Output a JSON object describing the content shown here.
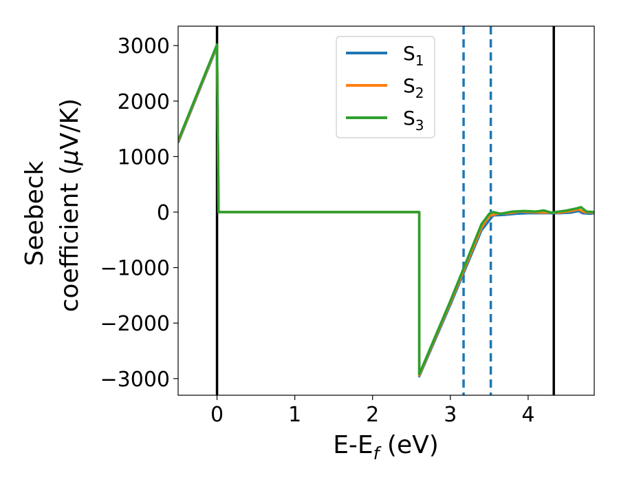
{
  "chart_data": {
    "type": "line",
    "xlabel_main": "E-E",
    "xlabel_sub": "f",
    "xlabel_unit": " (eV)",
    "ylabel_line1": "Seebeck",
    "ylabel_line2_pre": "coefficient  (",
    "ylabel_mu": "μ",
    "ylabel_line2_post": "V/K)",
    "xlim": [
      -0.5,
      4.85
    ],
    "ylim": [
      -3300,
      3350
    ],
    "x_ticks": [
      0,
      1,
      2,
      3,
      4
    ],
    "x_tick_labels": [
      "0",
      "1",
      "2",
      "3",
      "4"
    ],
    "y_ticks": [
      3000,
      2000,
      1000,
      0,
      -1000,
      -2000,
      -3000
    ],
    "y_tick_labels": [
      "3000",
      "2000",
      "1000",
      "0",
      "−1000",
      "−2000",
      "−3000"
    ],
    "legend_position": "top-center",
    "series": [
      {
        "name_main": "S",
        "name_sub": "1",
        "color": "#1f77b4",
        "points": [
          [
            -0.5,
            1250
          ],
          [
            0,
            2980
          ],
          [
            0.02,
            0
          ],
          [
            2.6,
            0
          ],
          [
            2.6,
            -2960
          ],
          [
            3.0,
            -1670
          ],
          [
            3.4,
            -330
          ],
          [
            3.55,
            -60
          ],
          [
            3.7,
            -50
          ],
          [
            3.85,
            -30
          ],
          [
            4.0,
            -20
          ],
          [
            4.2,
            -20
          ],
          [
            4.4,
            -20
          ],
          [
            4.55,
            -10
          ],
          [
            4.65,
            20
          ],
          [
            4.7,
            -20
          ],
          [
            4.8,
            -30
          ],
          [
            4.85,
            -20
          ]
        ]
      },
      {
        "name_main": "S",
        "name_sub": "2",
        "color": "#ff7f0e",
        "points": [
          [
            -0.5,
            1270
          ],
          [
            0,
            3000
          ],
          [
            0.02,
            0
          ],
          [
            2.6,
            0
          ],
          [
            2.6,
            -2940
          ],
          [
            3.0,
            -1630
          ],
          [
            3.4,
            -280
          ],
          [
            3.5,
            -70
          ],
          [
            3.6,
            -30
          ],
          [
            3.75,
            -20
          ],
          [
            3.9,
            10
          ],
          [
            4.05,
            0
          ],
          [
            4.2,
            -10
          ],
          [
            4.4,
            -10
          ],
          [
            4.55,
            20
          ],
          [
            4.65,
            50
          ],
          [
            4.72,
            0
          ],
          [
            4.85,
            -10
          ]
        ]
      },
      {
        "name_main": "S",
        "name_sub": "3",
        "color": "#2ca02c",
        "points": [
          [
            -0.5,
            1290
          ],
          [
            0,
            3020
          ],
          [
            0.02,
            0
          ],
          [
            2.6,
            0
          ],
          [
            2.6,
            -2920
          ],
          [
            3.0,
            -1600
          ],
          [
            3.4,
            -220
          ],
          [
            3.5,
            -30
          ],
          [
            3.55,
            0
          ],
          [
            3.65,
            -30
          ],
          [
            3.8,
            10
          ],
          [
            3.95,
            20
          ],
          [
            4.1,
            10
          ],
          [
            4.2,
            30
          ],
          [
            4.3,
            -10
          ],
          [
            4.5,
            30
          ],
          [
            4.63,
            70
          ],
          [
            4.68,
            90
          ],
          [
            4.75,
            10
          ],
          [
            4.85,
            0
          ]
        ]
      }
    ],
    "vlines": [
      {
        "x": 0.0,
        "style": "solid",
        "color": "#000000"
      },
      {
        "x": 4.33,
        "style": "solid",
        "color": "#000000"
      },
      {
        "x": 3.17,
        "style": "dashed",
        "color": "#1f77b4"
      },
      {
        "x": 3.52,
        "style": "dashed",
        "color": "#1f77b4"
      }
    ]
  }
}
